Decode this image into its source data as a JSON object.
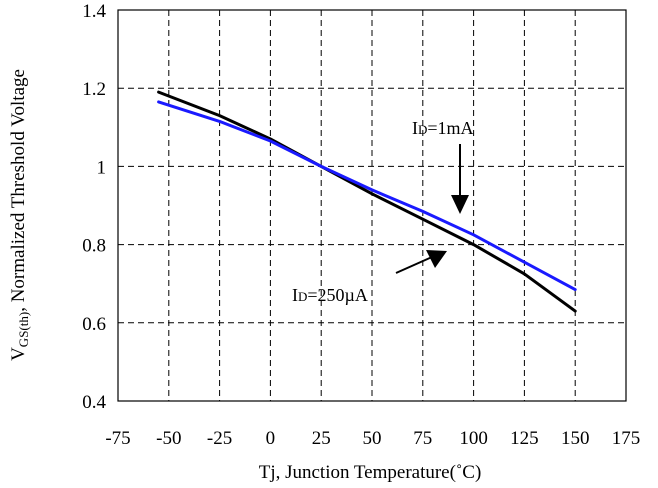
{
  "chart_data": {
    "type": "line",
    "title": "",
    "xlabel": "Tj, Junction Temperature(˚C)",
    "ylabel": {
      "main": "V",
      "sub": "GS(th)",
      "rest": ", Normalized Threshold Voltage"
    },
    "xlim": [
      -75,
      175
    ],
    "ylim": [
      0.4,
      1.4
    ],
    "x_ticks": [
      "-75",
      "-50",
      "-25",
      "0",
      "25",
      "50",
      "75",
      "100",
      "125",
      "150",
      "175"
    ],
    "y_ticks": [
      "0.4",
      "0.6",
      "0.8",
      "1",
      "1.2",
      "1.4"
    ],
    "grid": true,
    "grid_style": "dashed",
    "series": [
      {
        "name": "ID=250µA",
        "color": "#000000",
        "x": [
          -55,
          -25,
          0,
          25,
          50,
          75,
          100,
          125,
          150
        ],
        "y": [
          1.19,
          1.13,
          1.07,
          1.0,
          0.93,
          0.865,
          0.8,
          0.725,
          0.63
        ]
      },
      {
        "name": "ID=1mA",
        "color": "#1a1aff",
        "x": [
          -55,
          -25,
          0,
          25,
          50,
          75,
          100,
          125,
          150
        ],
        "y": [
          1.165,
          1.115,
          1.065,
          1.0,
          0.94,
          0.885,
          0.825,
          0.755,
          0.685
        ]
      }
    ],
    "annotations": [
      {
        "main": "I",
        "sub": "D",
        "rest": "=1mA"
      },
      {
        "main": "I",
        "sub": "D",
        "rest": "=250µA"
      }
    ]
  }
}
